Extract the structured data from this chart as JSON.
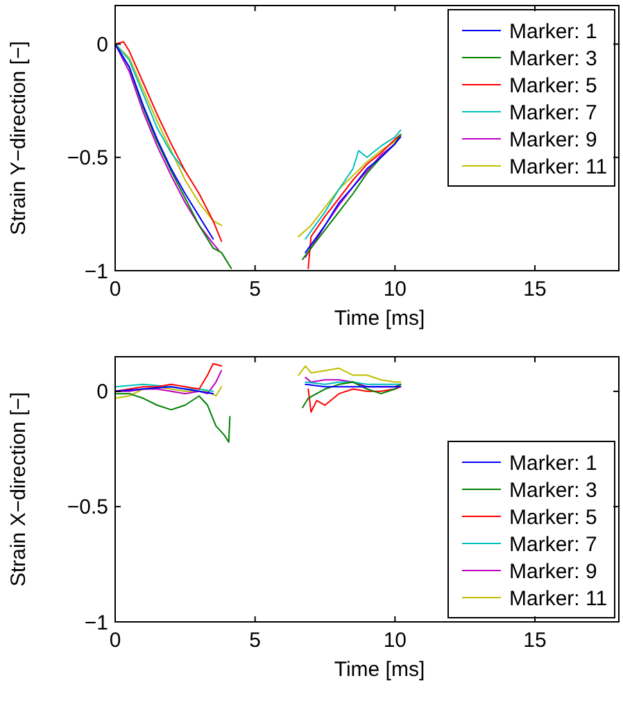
{
  "chart_data": [
    {
      "type": "line",
      "xlabel": "Time [ms]",
      "ylabel": "Strain Y−direction [−]",
      "xlim": [
        0,
        18
      ],
      "ylim": [
        -1,
        0.17
      ],
      "xticks": [
        0,
        5,
        10,
        15
      ],
      "yticks": [
        -1,
        -0.5,
        0
      ],
      "legend": "top right",
      "grid": false,
      "series": [
        {
          "name": "Marker: 1",
          "color": "#0000ff",
          "x": [
            0,
            0.5,
            1,
            1.5,
            2,
            2.5,
            3,
            3.5,
            5,
            6.8,
            7.5,
            8,
            8.5,
            9,
            9.5,
            10,
            10.2
          ],
          "values": [
            0,
            -0.1,
            -0.27,
            -0.42,
            -0.55,
            -0.66,
            -0.76,
            -0.86,
            null,
            -0.92,
            -0.8,
            -0.7,
            -0.63,
            -0.55,
            -0.5,
            -0.44,
            -0.41
          ]
        },
        {
          "name": "Marker: 3",
          "color": "#008000",
          "x": [
            0,
            0.5,
            1,
            1.5,
            2,
            2.5,
            3,
            3.5,
            3.8,
            4.15,
            5,
            6.7,
            7,
            7.5,
            8,
            8.5,
            9,
            9.5,
            10,
            10.2
          ],
          "values": [
            0,
            -0.1,
            -0.28,
            -0.43,
            -0.56,
            -0.68,
            -0.8,
            -0.9,
            -0.92,
            -0.99,
            null,
            -0.95,
            -0.9,
            -0.82,
            -0.74,
            -0.66,
            -0.57,
            -0.5,
            -0.44,
            -0.4
          ]
        },
        {
          "name": "Marker: 5",
          "color": "#ff0000",
          "x": [
            0,
            0.3,
            0.5,
            1,
            1.5,
            2,
            2.5,
            3,
            3.5,
            3.8,
            5,
            6.9,
            7,
            7.5,
            8,
            8.5,
            9,
            9.5,
            10,
            10.2
          ],
          "values": [
            0,
            0.01,
            -0.03,
            -0.17,
            -0.31,
            -0.44,
            -0.56,
            -0.66,
            -0.78,
            -0.87,
            null,
            -0.99,
            -0.85,
            -0.76,
            -0.68,
            -0.6,
            -0.53,
            -0.48,
            -0.42,
            -0.4
          ]
        },
        {
          "name": "Marker: 7",
          "color": "#00bfbf",
          "x": [
            0,
            0.5,
            1,
            1.5,
            2,
            2.5,
            5,
            6.8,
            7.5,
            8,
            8.5,
            8.7,
            9,
            9.5,
            10,
            10.2
          ],
          "values": [
            0,
            -0.07,
            -0.22,
            -0.37,
            -0.48,
            -0.56,
            null,
            -0.86,
            -0.74,
            -0.64,
            -0.55,
            -0.47,
            -0.5,
            -0.45,
            -0.41,
            -0.38
          ]
        },
        {
          "name": "Marker: 9",
          "color": "#bf00bf",
          "x": [
            0,
            0.5,
            1,
            1.5,
            2,
            2.5,
            3,
            3.5,
            3.7,
            5,
            6.8,
            7,
            7.5,
            8,
            8.5,
            9,
            9.5,
            10,
            10.2
          ],
          "values": [
            0,
            -0.12,
            -0.3,
            -0.45,
            -0.58,
            -0.7,
            -0.8,
            -0.88,
            -0.91,
            null,
            -0.94,
            -0.9,
            -0.8,
            -0.71,
            -0.63,
            -0.56,
            -0.49,
            -0.44,
            -0.4
          ]
        },
        {
          "name": "Marker: 11",
          "color": "#bfbf00",
          "x": [
            0,
            0.5,
            1,
            1.5,
            2,
            2.5,
            3,
            3.5,
            3.8,
            5,
            6.55,
            7,
            7.5,
            8,
            8.5,
            9,
            9.5,
            10,
            10.2
          ],
          "values": [
            0,
            -0.06,
            -0.2,
            -0.34,
            -0.47,
            -0.6,
            -0.7,
            -0.78,
            -0.8,
            null,
            -0.85,
            -0.8,
            -0.72,
            -0.64,
            -0.58,
            -0.52,
            -0.47,
            -0.43,
            -0.4
          ]
        }
      ]
    },
    {
      "type": "line",
      "xlabel": "Time [ms]",
      "ylabel": "Strain X−direction [−]",
      "xlim": [
        0,
        18
      ],
      "ylim": [
        -1,
        0.15
      ],
      "xticks": [
        0,
        5,
        10,
        15
      ],
      "yticks": [
        -1,
        -0.5,
        0
      ],
      "legend": "bottom right",
      "grid": false,
      "series": [
        {
          "name": "Marker: 1",
          "color": "#0000ff",
          "x": [
            0,
            1,
            2,
            3,
            3.5,
            5,
            6.8,
            7.5,
            8.5,
            9.5,
            10.2
          ],
          "values": [
            0,
            0.01,
            0.02,
            0,
            -0.01,
            null,
            0.03,
            0.02,
            0.02,
            0.02,
            0.02
          ]
        },
        {
          "name": "Marker: 3",
          "color": "#008000",
          "x": [
            0,
            0.5,
            1,
            1.5,
            2,
            2.5,
            3,
            3.3,
            3.6,
            3.9,
            4.06,
            4.1,
            5,
            6.7,
            6.9,
            7.2,
            7.5,
            8,
            8.5,
            9,
            9.5,
            10,
            10.2
          ],
          "values": [
            -0.01,
            -0.01,
            -0.03,
            -0.06,
            -0.08,
            -0.06,
            -0.02,
            -0.06,
            -0.15,
            -0.19,
            -0.22,
            -0.11,
            null,
            -0.07,
            -0.03,
            -0.01,
            0.01,
            0.03,
            0.04,
            0.01,
            -0.01,
            0.01,
            0.03
          ]
        },
        {
          "name": "Marker: 5",
          "color": "#ff0000",
          "x": [
            0,
            0.5,
            1,
            1.5,
            2,
            2.5,
            3,
            3.3,
            3.5,
            3.8,
            5,
            6.9,
            7,
            7.2,
            7.5,
            8,
            8.5,
            9,
            9.5,
            10,
            10.2
          ],
          "values": [
            0,
            0.01,
            0.02,
            0.02,
            0.03,
            0.02,
            0.01,
            0.07,
            0.12,
            0.11,
            null,
            0.01,
            -0.09,
            -0.04,
            -0.06,
            -0.01,
            0.01,
            0,
            0,
            0.01,
            0.02
          ]
        },
        {
          "name": "Marker: 7",
          "color": "#00bfbf",
          "x": [
            0,
            1,
            2,
            2.5,
            3,
            3.5,
            5,
            6.8,
            7.5,
            8,
            8.5,
            9,
            9.5,
            10,
            10.2
          ],
          "values": [
            0.02,
            0.03,
            0.02,
            0.01,
            0.01,
            0,
            null,
            0.04,
            0.03,
            0.04,
            0.04,
            0.03,
            0.03,
            0.03,
            0.03
          ]
        },
        {
          "name": "Marker: 9",
          "color": "#bf00bf",
          "x": [
            0,
            0.5,
            1,
            1.5,
            2,
            2.5,
            3,
            3.3,
            3.6,
            3.8,
            5,
            6.8,
            7,
            7.5,
            8,
            8.5,
            9,
            9.5,
            10,
            10.2
          ],
          "values": [
            0,
            0,
            0.01,
            0.01,
            0,
            -0.01,
            0,
            -0.01,
            0.04,
            0.09,
            null,
            0.06,
            0.04,
            0.05,
            0.05,
            0.04,
            0.02,
            0.02,
            0.02,
            0.03
          ]
        },
        {
          "name": "Marker: 11",
          "color": "#bfbf00",
          "x": [
            0,
            0.5,
            1,
            1.5,
            2,
            2.5,
            3,
            3.3,
            3.6,
            3.8,
            5,
            6.55,
            6.8,
            7,
            7.5,
            8,
            8.5,
            9,
            9.5,
            10,
            10.2
          ],
          "values": [
            -0.03,
            -0.02,
            0.01,
            0.02,
            0.01,
            0,
            0,
            0,
            -0.02,
            0.02,
            null,
            0.07,
            0.11,
            0.08,
            0.09,
            0.1,
            0.07,
            0.07,
            0.05,
            0.04,
            0.04
          ]
        }
      ]
    }
  ]
}
